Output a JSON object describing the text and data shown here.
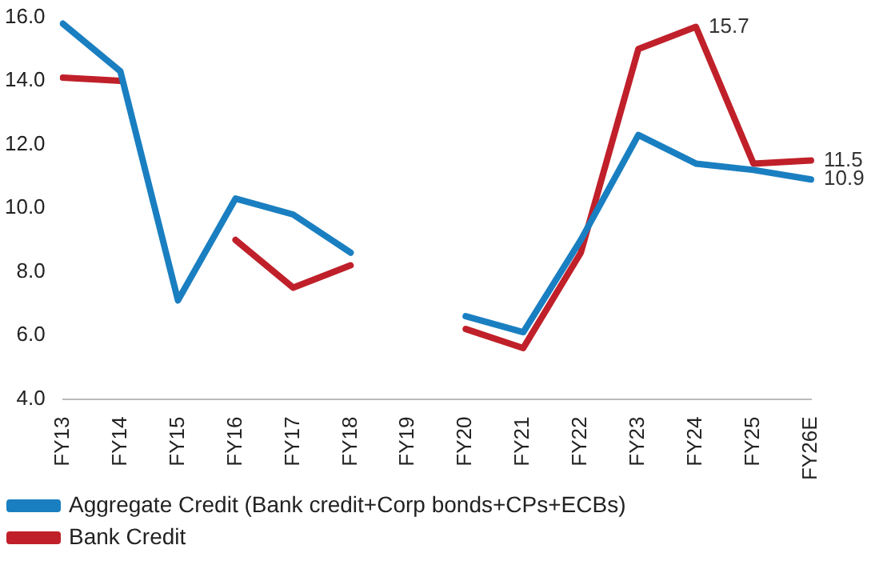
{
  "chart_data": {
    "type": "line",
    "categories": [
      "FY13",
      "FY14",
      "FY15",
      "FY16",
      "FY17",
      "FY18",
      "FY19",
      "FY20",
      "FY21",
      "FY22",
      "FY23",
      "FY24",
      "FY25",
      "FY26E"
    ],
    "series": [
      {
        "name": "Aggregate Credit (Bank credit+Corp bonds+CPs+ECBs)",
        "color": "#1a7fc1",
        "values": [
          15.8,
          14.3,
          7.1,
          10.3,
          9.8,
          8.6,
          null,
          6.6,
          6.1,
          9.0,
          12.3,
          11.4,
          11.2,
          10.9
        ],
        "value_labels": [
          null,
          null,
          null,
          null,
          null,
          null,
          null,
          null,
          null,
          null,
          null,
          null,
          null,
          "10.9"
        ]
      },
      {
        "name": "Bank Credit",
        "color": "#c0202a",
        "values": [
          14.1,
          14.0,
          null,
          9.0,
          7.5,
          8.2,
          null,
          6.2,
          5.6,
          8.6,
          15.0,
          15.7,
          11.4,
          11.5
        ],
        "value_labels": [
          null,
          null,
          null,
          null,
          null,
          null,
          null,
          null,
          null,
          null,
          null,
          "15.7",
          null,
          "11.5"
        ]
      }
    ],
    "ylim": [
      4,
      16
    ],
    "yticks": [
      {
        "value": 4,
        "label": "4.0"
      },
      {
        "value": 6,
        "label": "6.0"
      },
      {
        "value": 8,
        "label": "8.0"
      },
      {
        "value": 10,
        "label": "10.0"
      },
      {
        "value": 12,
        "label": "12.0"
      },
      {
        "value": 14,
        "label": "14.0"
      },
      {
        "value": 16,
        "label": "16.0"
      }
    ],
    "grid": false,
    "legend": "bottom",
    "marker": "none",
    "line_style": "solid"
  }
}
